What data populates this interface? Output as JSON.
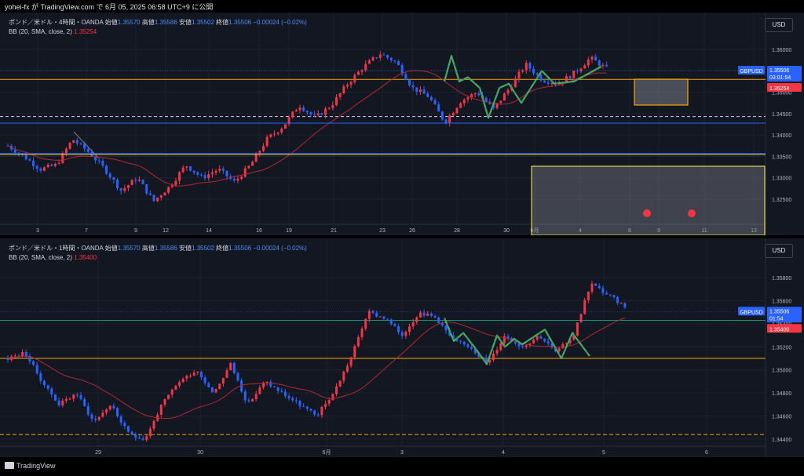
{
  "header": {
    "publish_text": "yohei-fx が TradingView.com で 6月 05, 2025 06:58 UTC+9 に公開"
  },
  "footer": {
    "logo_text": "TradingView"
  },
  "colors": {
    "bull": "#f23645",
    "bear": "#2962ff",
    "ma": "#b22833",
    "level_orange": "#f7a600",
    "level_blue": "#2962ff",
    "level_green": "#089981",
    "wave_green": "#4caf50",
    "price_label": "#2962ff",
    "bb_label": "#f23645"
  },
  "pane4h": {
    "legend": {
      "title": "ポンド／米ドル・4時間・OANDA",
      "o_label": "始値",
      "o": "1.35570",
      "h_label": "高値",
      "h": "1.35586",
      "l_label": "安値",
      "l": "1.35502",
      "c_label": "終値",
      "c": "1.35506",
      "chg": "−0.00024 (−0.02%)"
    },
    "bb": {
      "text": "BB (20, SMA, close, 2)",
      "value": "1.35254"
    },
    "currency": "USD",
    "price_label": {
      "symbol": "GBPUSD",
      "price": "1.35506",
      "countdown": "03:01:54"
    },
    "bb_label": "1.35254",
    "y_ticks": [
      "1.36000",
      "1.35500",
      "1.35000",
      "1.34500",
      "1.34000",
      "1.33500",
      "1.33000",
      "1.32500"
    ],
    "x_ticks": [
      "3",
      "7",
      "9",
      "12",
      "14",
      "16",
      "19",
      "21",
      "23",
      "26",
      "28",
      "30",
      "6月",
      "4",
      "6",
      "9",
      "11",
      "13"
    ],
    "levels": [
      1.353,
      1.3443,
      1.3357
    ]
  },
  "pane1h": {
    "legend": {
      "title": "ポンド／米ドル・1時間・OANDA",
      "o_label": "始値",
      "o": "1.35570",
      "h_label": "高値",
      "h": "1.35586",
      "l_label": "安値",
      "l": "1.35502",
      "c_label": "終値",
      "c": "1.35506",
      "chg": "−0.00024 (−0.02%)"
    },
    "bb": {
      "text": "BB (20, SMA, close, 2)",
      "value": "1.35400"
    },
    "currency": "USD",
    "price_label": {
      "symbol": "GBPUSD",
      "price": "1.35506",
      "countdown": "01:54"
    },
    "bb_label": "1.35400",
    "y_ticks": [
      "1.35800",
      "1.35600",
      "1.35400",
      "1.35200",
      "1.35000",
      "1.34800",
      "1.34600",
      "1.34400"
    ],
    "x_ticks": [
      "29",
      "30",
      "6月",
      "3",
      "4",
      "5",
      "6"
    ],
    "levels": [
      1.3543,
      1.351,
      1.3444
    ]
  }
}
